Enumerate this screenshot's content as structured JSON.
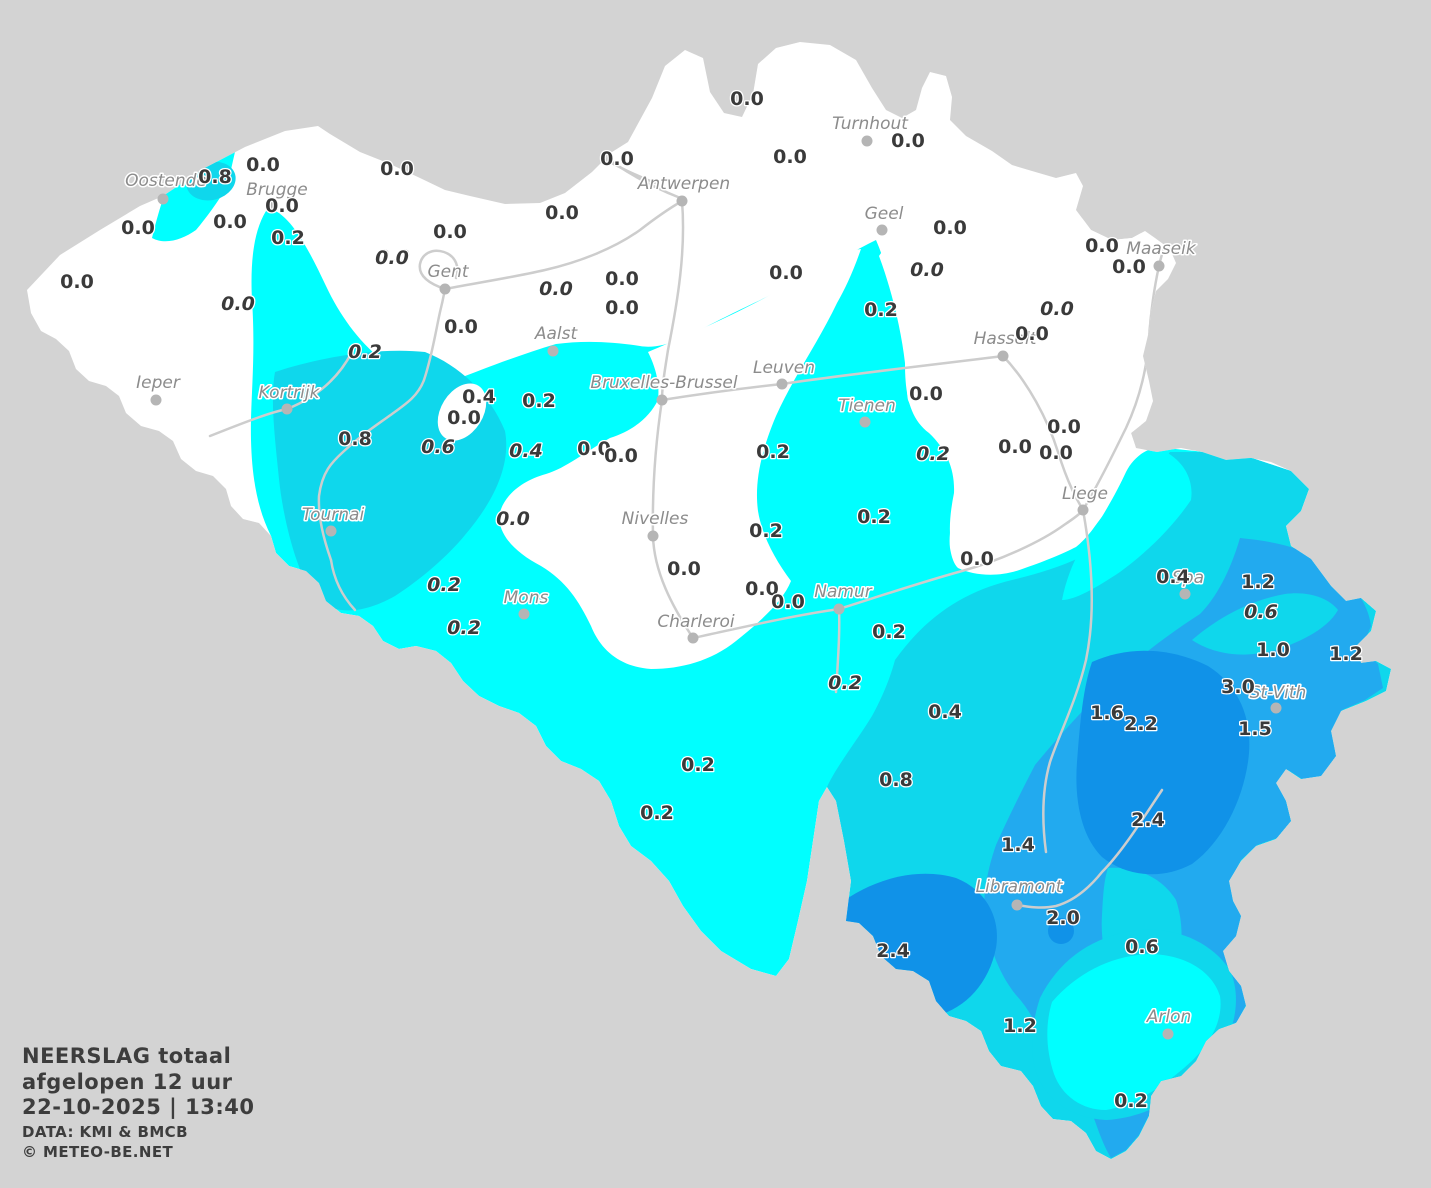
{
  "title": {
    "line1": "NEERSLAG totaal",
    "line2": "afgelopen 12 uur",
    "line3": "22-10-2025  |  13:40",
    "line4": "DATA: KMI & BMCB",
    "line5": "© METEO-BE.NET"
  },
  "colors": {
    "background": "#d3d3d3",
    "land": "#ffffff",
    "line": "#cdcdcd",
    "city_dot": "#b5b5b5",
    "city_label": "#8c8c8c",
    "value_label": "#3a3a3a",
    "scale_c1": "#00ffff",
    "scale_c2": "#0fd7ec",
    "scale_c3": "#22aaef",
    "scale_c4": "#1092e8"
  },
  "legend_semantics": {
    "c1": "light precipitation ~0.2 mm",
    "c2": "~0.4-0.8 mm",
    "c3": "~1.0-1.6 mm",
    "c4": "~2.0-3.0 mm"
  },
  "cities": [
    [
      "Oostende",
      163,
      199,
      166,
      186
    ],
    [
      "Brugge",
      271,
      206,
      277,
      195
    ],
    [
      "Antwerpen",
      682,
      201,
      684,
      189
    ],
    [
      "Turnhout",
      867,
      141,
      870,
      129
    ],
    [
      "Geel",
      882,
      230,
      884,
      219
    ],
    [
      "Maaseik",
      1159,
      266,
      1161,
      254
    ],
    [
      "Hasselt",
      1003,
      356,
      1005,
      344
    ],
    [
      "Gent",
      445,
      289,
      448,
      277
    ],
    [
      "Aalst",
      553,
      351,
      556,
      339
    ],
    [
      "Ieper",
      156,
      400,
      158,
      388
    ],
    [
      "Kortrijk",
      287,
      409,
      289,
      398
    ],
    [
      "Bruxelles-Brussel",
      662,
      400,
      664,
      388
    ],
    [
      "Leuven",
      782,
      384,
      784,
      373
    ],
    [
      "Tienen",
      865,
      422,
      867,
      411
    ],
    [
      "Liege",
      1083,
      510,
      1085,
      499
    ],
    [
      "Tournai",
      331,
      531,
      333,
      520
    ],
    [
      "Nivelles",
      653,
      536,
      655,
      524
    ],
    [
      "Namur",
      839,
      609,
      843,
      597
    ],
    [
      "Mons",
      524,
      614,
      526,
      603
    ],
    [
      "Charleroi",
      693,
      638,
      696,
      627
    ],
    [
      "Spa",
      1185,
      594,
      1188,
      583
    ],
    [
      "St-Vith",
      1276,
      708,
      1278,
      698
    ],
    [
      "Libramont",
      1017,
      905,
      1019,
      892
    ],
    [
      "Arlon",
      1168,
      1034,
      1169,
      1022
    ]
  ],
  "values": [
    [
      "0.8",
      215,
      177,
      0
    ],
    [
      "0.0",
      263,
      165,
      0
    ],
    [
      "0.0",
      397,
      169,
      0
    ],
    [
      "0.0",
      282,
      206,
      0
    ],
    [
      "0.0",
      138,
      228,
      0
    ],
    [
      "0.0",
      230,
      222,
      0
    ],
    [
      "0.2",
      288,
      238,
      0
    ],
    [
      "0.0",
      393,
      257,
      1
    ],
    [
      "0.0",
      77,
      282,
      0
    ],
    [
      "0.0",
      238,
      304,
      1
    ],
    [
      "0.2",
      365,
      352,
      1
    ],
    [
      "0.0",
      747,
      99,
      0
    ],
    [
      "0.0",
      908,
      141,
      0
    ],
    [
      "0.0",
      790,
      157,
      0
    ],
    [
      "0.0",
      617,
      159,
      0
    ],
    [
      "0.0",
      562,
      213,
      0
    ],
    [
      "0.0",
      950,
      228,
      0
    ],
    [
      "0.0",
      786,
      273,
      0
    ],
    [
      "0.0",
      927,
      270,
      1
    ],
    [
      "0.0",
      622,
      279,
      0
    ],
    [
      "0.0",
      622,
      308,
      0
    ],
    [
      "0.2",
      881,
      310,
      0
    ],
    [
      "0.0",
      1102,
      246,
      0
    ],
    [
      "0.0",
      1129,
      267,
      0
    ],
    [
      "0.0",
      1057,
      309,
      1
    ],
    [
      "0.0",
      1032,
      334,
      0
    ],
    [
      "0.0",
      1064,
      427,
      0
    ],
    [
      "0.0",
      1015,
      447,
      0
    ],
    [
      "0.0",
      1056,
      453,
      0
    ],
    [
      "0.0",
      450,
      232,
      0
    ],
    [
      "0.0",
      392,
      258,
      1
    ],
    [
      "0.0",
      556,
      289,
      1
    ],
    [
      "0.0",
      461,
      327,
      0
    ],
    [
      "0.4",
      479,
      397,
      0
    ],
    [
      "0.0",
      464,
      418,
      0
    ],
    [
      "0.8",
      355,
      439,
      0
    ],
    [
      "0.6",
      438,
      447,
      1
    ],
    [
      "0.2",
      539,
      401,
      0
    ],
    [
      "0.4",
      526,
      451,
      1
    ],
    [
      "0.0",
      594,
      449,
      0
    ],
    [
      "0.0",
      621,
      456,
      0
    ],
    [
      "0.2",
      444,
      585,
      1
    ],
    [
      "0.2",
      464,
      628,
      1
    ],
    [
      "0.0",
      513,
      519,
      1
    ],
    [
      "0.2",
      773,
      452,
      0
    ],
    [
      "0.0",
      926,
      394,
      0
    ],
    [
      "0.2",
      933,
      454,
      1
    ],
    [
      "0.2",
      874,
      517,
      0
    ],
    [
      "0.2",
      766,
      531,
      0
    ],
    [
      "0.0",
      684,
      569,
      0
    ],
    [
      "0.0",
      762,
      589,
      0
    ],
    [
      "0.0",
      788,
      602,
      0
    ],
    [
      "0.0",
      977,
      559,
      0
    ],
    [
      "0.2",
      889,
      632,
      0
    ],
    [
      "0.2",
      845,
      683,
      1
    ],
    [
      "0.4",
      1173,
      577,
      0
    ],
    [
      "1.2",
      1258,
      582,
      0
    ],
    [
      "0.6",
      1261,
      612,
      1
    ],
    [
      "1.0",
      1273,
      650,
      0
    ],
    [
      "1.2",
      1346,
      654,
      0
    ],
    [
      "3.0",
      1238,
      687,
      0
    ],
    [
      "1.6",
      1107,
      713,
      0
    ],
    [
      "2.2",
      1141,
      724,
      0
    ],
    [
      "1.5",
      1255,
      729,
      0
    ],
    [
      "0.4",
      945,
      712,
      0
    ],
    [
      "0.8",
      896,
      780,
      0
    ],
    [
      "2.4",
      1148,
      820,
      0
    ],
    [
      "1.4",
      1018,
      845,
      0
    ],
    [
      "0.2",
      698,
      765,
      0
    ],
    [
      "0.2",
      657,
      813,
      0
    ],
    [
      "2.4",
      893,
      951,
      0
    ],
    [
      "2.0",
      1063,
      918,
      0
    ],
    [
      "0.6",
      1142,
      947,
      0
    ],
    [
      "1.2",
      1020,
      1026,
      0
    ],
    [
      "0.2",
      1131,
      1101,
      0
    ]
  ]
}
